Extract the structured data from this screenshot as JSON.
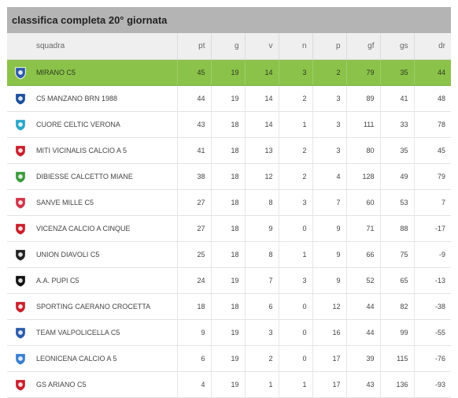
{
  "title": "classifica completa 20° giornata",
  "columns": {
    "team": "squadra",
    "pt": "pt",
    "g": "g",
    "v": "v",
    "n": "n",
    "p": "p",
    "gf": "gf",
    "gs": "gs",
    "dr": "dr"
  },
  "highlight_color": "#8bc34a",
  "rows": [
    {
      "team": "MIRANO C5",
      "pt": "45",
      "g": "19",
      "v": "14",
      "n": "3",
      "p": "2",
      "gf": "79",
      "gs": "35",
      "dr": "44",
      "logo_icon": "mirano-logo-icon",
      "logo_color": "#2b5aa8"
    },
    {
      "team": "C5 MANZANO BRN 1988",
      "pt": "44",
      "g": "19",
      "v": "14",
      "n": "2",
      "p": "3",
      "gf": "89",
      "gs": "41",
      "dr": "48",
      "logo_icon": "manzano-logo-icon",
      "logo_color": "#1d4f9c"
    },
    {
      "team": "CUORE CELTIC VERONA",
      "pt": "43",
      "g": "18",
      "v": "14",
      "n": "1",
      "p": "3",
      "gf": "111",
      "gs": "33",
      "dr": "78",
      "logo_icon": "celtic-logo-icon",
      "logo_color": "#2aa6c8"
    },
    {
      "team": "MITI VICINALIS CALCIO A 5",
      "pt": "41",
      "g": "18",
      "v": "13",
      "n": "2",
      "p": "3",
      "gf": "80",
      "gs": "35",
      "dr": "45",
      "logo_icon": "miti-logo-icon",
      "logo_color": "#c8202c"
    },
    {
      "team": "DIBIESSE CALCETTO MIANE",
      "pt": "38",
      "g": "18",
      "v": "12",
      "n": "2",
      "p": "4",
      "gf": "128",
      "gs": "49",
      "dr": "79",
      "logo_icon": "dibiesse-logo-icon",
      "logo_color": "#3a9a3a"
    },
    {
      "team": "SANVE MILLE C5",
      "pt": "27",
      "g": "18",
      "v": "8",
      "n": "3",
      "p": "7",
      "gf": "60",
      "gs": "53",
      "dr": "7",
      "logo_icon": "sanve-logo-icon",
      "logo_color": "#d0344a"
    },
    {
      "team": "VICENZA CALCIO A CINQUE",
      "pt": "27",
      "g": "18",
      "v": "9",
      "n": "0",
      "p": "9",
      "gf": "71",
      "gs": "88",
      "dr": "-17",
      "logo_icon": "vicenza-logo-icon",
      "logo_color": "#c8202c"
    },
    {
      "team": "UNION DIAVOLI C5",
      "pt": "25",
      "g": "18",
      "v": "8",
      "n": "1",
      "p": "9",
      "gf": "66",
      "gs": "75",
      "dr": "-9",
      "logo_icon": "diavoli-logo-icon",
      "logo_color": "#222222"
    },
    {
      "team": "A.A. PUPI C5",
      "pt": "24",
      "g": "19",
      "v": "7",
      "n": "3",
      "p": "9",
      "gf": "52",
      "gs": "65",
      "dr": "-13",
      "logo_icon": "pupi-logo-icon",
      "logo_color": "#111111"
    },
    {
      "team": "SPORTING CAERANO CROCETTA",
      "pt": "18",
      "g": "18",
      "v": "6",
      "n": "0",
      "p": "12",
      "gf": "44",
      "gs": "82",
      "dr": "-38",
      "logo_icon": "sporting-logo-icon",
      "logo_color": "#c8202c"
    },
    {
      "team": "TEAM VALPOLICELLA C5",
      "pt": "9",
      "g": "19",
      "v": "3",
      "n": "0",
      "p": "16",
      "gf": "44",
      "gs": "99",
      "dr": "-55",
      "logo_icon": "valpolicella-logo-icon",
      "logo_color": "#2b5aa8"
    },
    {
      "team": "LEONICENA CALCIO A 5",
      "pt": "6",
      "g": "19",
      "v": "2",
      "n": "0",
      "p": "17",
      "gf": "39",
      "gs": "115",
      "dr": "-76",
      "logo_icon": "leonicena-logo-icon",
      "logo_color": "#3a7fd0"
    },
    {
      "team": "GS ARIANO C5",
      "pt": "4",
      "g": "19",
      "v": "1",
      "n": "1",
      "p": "17",
      "gf": "43",
      "gs": "136",
      "dr": "-93",
      "logo_icon": "ariano-logo-icon",
      "logo_color": "#c8202c"
    }
  ]
}
